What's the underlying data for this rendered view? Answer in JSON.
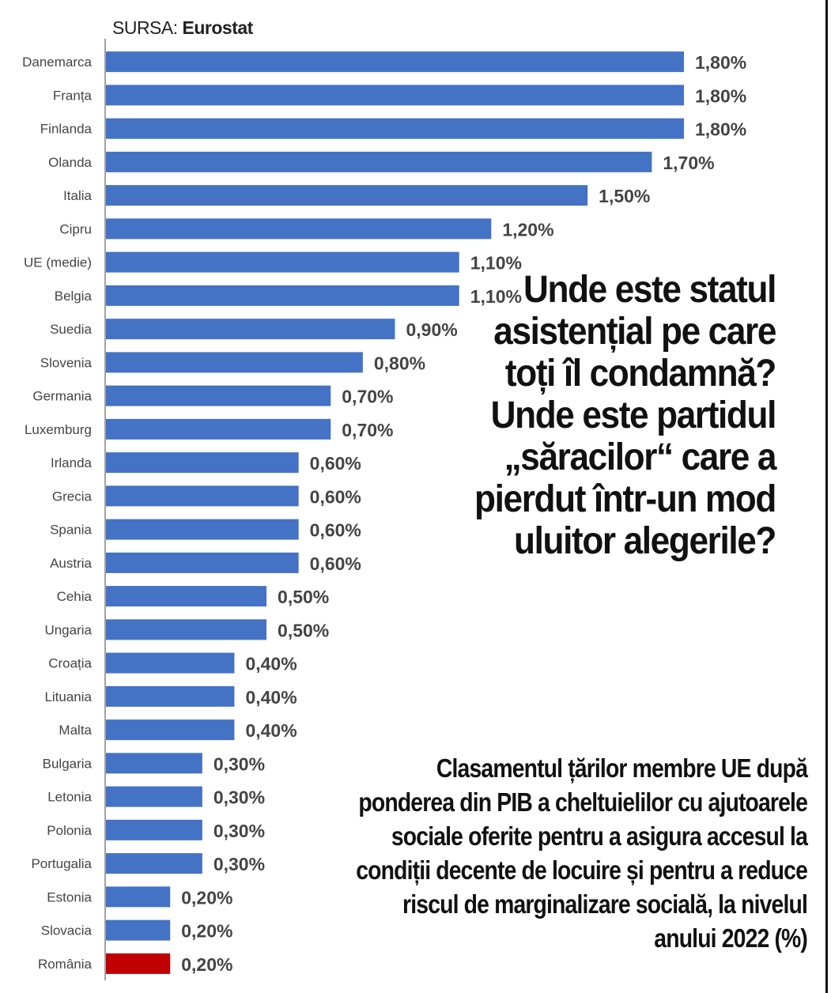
{
  "source": {
    "label": "SURSA:",
    "name": "Eurostat"
  },
  "headline": "Unde este statul asistențial pe care toți îl condamnă? Unde este partidul „săracilor“ care a pierdut într-un mod uluitor alegerile?",
  "subtitle": "Clasamentul țărilor membre UE după ponderea din PIB a cheltuielilor cu ajutoarele sociale oferite pentru a asigura accesul la condiții decente de locuire și pentru a reduce riscul de marginalizare socială, la nivelul anului 2022 (%)",
  "colors": {
    "bar": "#4472c4",
    "highlight": "#c00000",
    "label": "#444444",
    "axis": "#444444"
  },
  "chart_data": {
    "type": "bar",
    "orientation": "horizontal",
    "title": "",
    "xlabel": "",
    "ylabel": "",
    "xlim": [
      0,
      1.8
    ],
    "grid": false,
    "highlight_category": "România",
    "categories": [
      "Danemarca",
      "Franța",
      "Finlanda",
      "Olanda",
      "Italia",
      "Cipru",
      "UE (medie)",
      "Belgia",
      "Suedia",
      "Slovenia",
      "Germania",
      "Luxemburg",
      "Irlanda",
      "Grecia",
      "Spania",
      "Austria",
      "Cehia",
      "Ungaria",
      "Croația",
      "Lituania",
      "Malta",
      "Bulgaria",
      "Letonia",
      "Polonia",
      "Portugalia",
      "Estonia",
      "Slovacia",
      "România"
    ],
    "values": [
      1.8,
      1.8,
      1.8,
      1.7,
      1.5,
      1.2,
      1.1,
      1.1,
      0.9,
      0.8,
      0.7,
      0.7,
      0.6,
      0.6,
      0.6,
      0.6,
      0.5,
      0.5,
      0.4,
      0.4,
      0.4,
      0.3,
      0.3,
      0.3,
      0.3,
      0.2,
      0.2,
      0.2
    ],
    "data_labels": [
      "1,80%",
      "1,80%",
      "1,80%",
      "1,70%",
      "1,50%",
      "1,20%",
      "1,10%",
      "1,10%",
      "0,90%",
      "0,80%",
      "0,70%",
      "0,70%",
      "0,60%",
      "0,60%",
      "0,60%",
      "0,60%",
      "0,50%",
      "0,50%",
      "0,40%",
      "0,40%",
      "0,40%",
      "0,30%",
      "0,30%",
      "0,30%",
      "0,30%",
      "0,20%",
      "0,20%",
      "0,20%"
    ]
  }
}
